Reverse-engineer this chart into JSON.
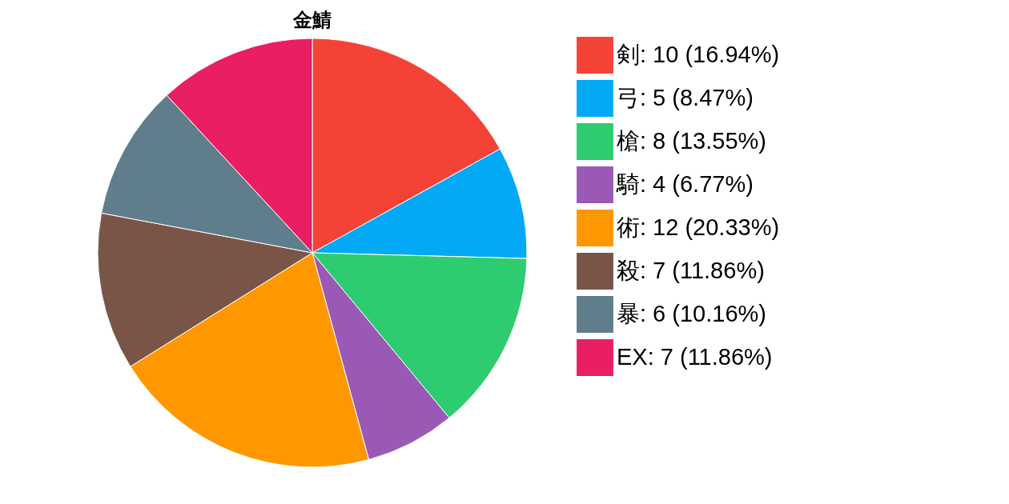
{
  "chart_data": {
    "type": "pie",
    "title": "金鯖",
    "categories": [
      "剣: 10 (16.94%)",
      "弓: 5 (8.47%)",
      "槍: 8 (13.55%)",
      "騎: 4 (6.77%)",
      "術: 12 (20.33%)",
      "殺: 7 (11.86%)",
      "暴: 6 (10.16%)",
      "EX: 7 (11.86%)"
    ],
    "values": [
      10,
      5,
      8,
      4,
      12,
      7,
      6,
      7
    ],
    "colors": [
      "#f44336",
      "#03a9f4",
      "#2ecc71",
      "#9b59b6",
      "#ff9800",
      "#795548",
      "#607d8b",
      "#e91e63"
    ],
    "legend": "right"
  }
}
